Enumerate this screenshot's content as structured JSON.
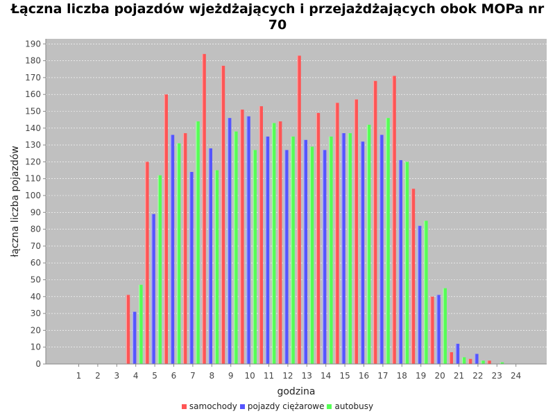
{
  "chart_data": {
    "type": "bar",
    "title": "Łączna liczba pojazdów wjeżdżających i przejażdżających obok MOPa nr 70",
    "xlabel": "godzina",
    "ylabel": "łączna liczba pojazdów",
    "ylim": [
      0,
      193
    ],
    "yticks": [
      0,
      10,
      20,
      30,
      40,
      50,
      60,
      70,
      80,
      90,
      100,
      110,
      120,
      130,
      140,
      150,
      160,
      170,
      180,
      190
    ],
    "grid": true,
    "legend_position": "bottom",
    "background_color": "#c0c0c0",
    "categories": [
      "1",
      "2",
      "3",
      "4",
      "5",
      "6",
      "7",
      "8",
      "9",
      "10",
      "11",
      "12",
      "13",
      "14",
      "15",
      "16",
      "17",
      "18",
      "19",
      "20",
      "21",
      "22",
      "23",
      "24"
    ],
    "series": [
      {
        "name": "samochody",
        "color": "#ff5555",
        "values": [
          0,
          0,
          0,
          41,
          120,
          160,
          137,
          184,
          177,
          151,
          153,
          144,
          183,
          149,
          155,
          157,
          168,
          171,
          104,
          40,
          7,
          3,
          2,
          0
        ]
      },
      {
        "name": "pojazdy ciężarowe",
        "color": "#5555ff",
        "values": [
          0,
          0,
          0,
          31,
          89,
          136,
          114,
          128,
          146,
          147,
          135,
          127,
          133,
          127,
          137,
          132,
          136,
          121,
          82,
          41,
          12,
          6,
          0,
          0
        ]
      },
      {
        "name": "autobusy",
        "color": "#55ff55",
        "values": [
          0,
          0,
          0,
          47,
          112,
          131,
          144,
          115,
          138,
          127,
          143,
          135,
          129,
          135,
          137,
          142,
          146,
          120,
          85,
          45,
          4,
          2,
          1,
          0
        ]
      }
    ]
  }
}
